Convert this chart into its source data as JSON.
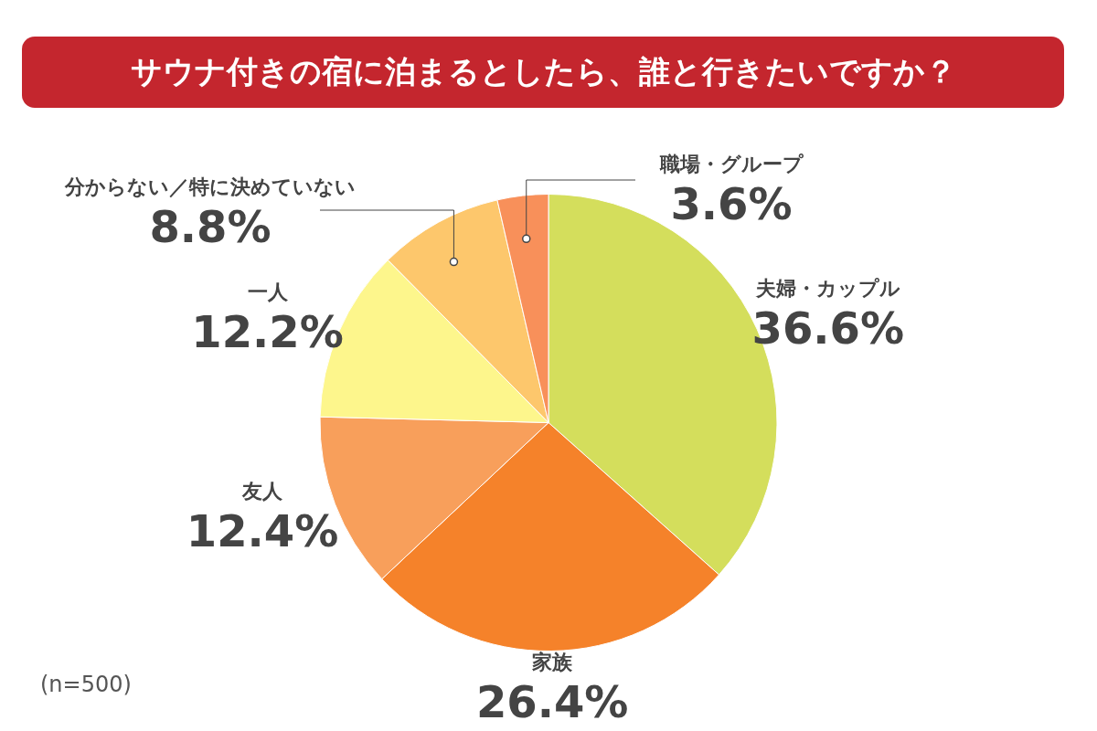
{
  "chart_data": {
    "type": "pie",
    "title": "サウナ付きの宿に泊まるとしたら、誰と行きたいですか？",
    "categories": [
      "夫婦・カップル",
      "家族",
      "友人",
      "一人",
      "分からない／特に決めていない",
      "職場・グループ"
    ],
    "values": [
      36.6,
      26.4,
      12.4,
      12.2,
      8.8,
      3.6
    ],
    "value_labels": [
      "36.6%",
      "26.4%",
      "12.4%",
      "12.2%",
      "8.8%",
      "3.6%"
    ],
    "colors": [
      "#d4de5c",
      "#f5822a",
      "#f89f5b",
      "#fdf68c",
      "#fdc76c",
      "#f8905a"
    ],
    "annotations": [
      "(n=500)"
    ]
  }
}
